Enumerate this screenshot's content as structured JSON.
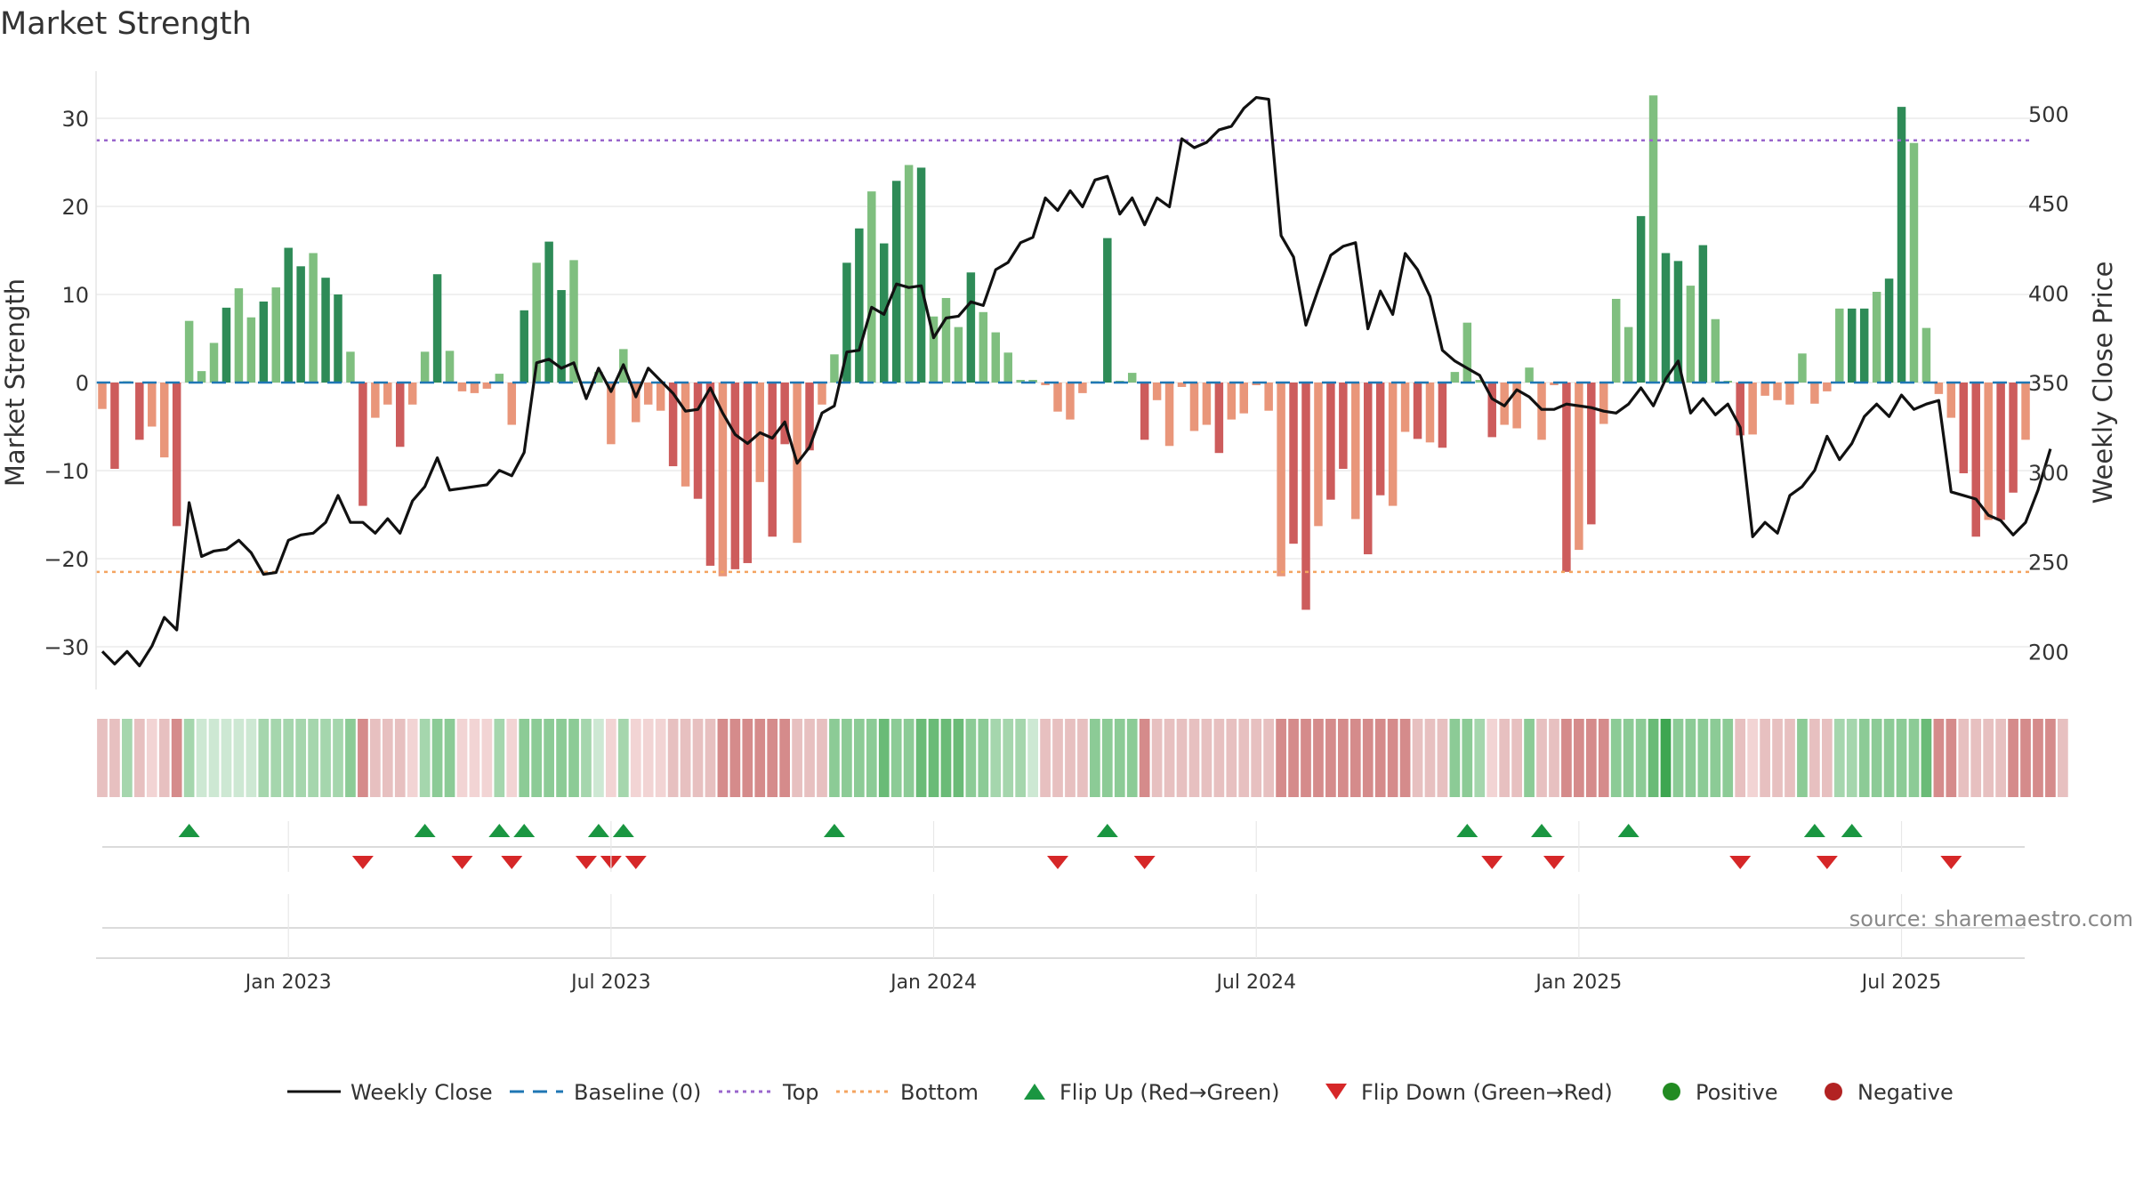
{
  "title": "Market Strength",
  "source_text": "source: sharemaestro.com",
  "colors": {
    "pos_strong": "#2e8b57",
    "pos_light": "#7fbf7f",
    "neg_strong": "#cd5c5c",
    "neg_light": "#e9967a",
    "close_line": "#111111",
    "baseline": "#1f77b4",
    "top": "#9966cc",
    "bottom": "#f4a460",
    "flip_up": "#1a9641",
    "flip_down": "#d62728",
    "positive_dot": "#228b22",
    "negative_dot": "#b22222"
  },
  "chart_data": {
    "type": "bar",
    "title": "Market Strength",
    "ylabel": "Market Strength",
    "y2label": "Weekly Close Price",
    "ylim": [
      -35,
      35
    ],
    "y2lim": [
      182,
      518
    ],
    "yticks": [
      -30,
      -20,
      -10,
      0,
      10,
      20,
      30
    ],
    "yticklabels": [
      "−30",
      "−20",
      "−10",
      "0",
      "10",
      "20",
      "30"
    ],
    "y2ticks": [
      200,
      250,
      300,
      350,
      400,
      450,
      500
    ],
    "y2ticklabels": [
      "200",
      "250",
      "300",
      "350",
      "400",
      "450",
      "500"
    ],
    "xticklabels": [
      "Jan 2023",
      "Jul 2023",
      "Jan 2024",
      "Jul 2024",
      "Jan 2025",
      "Jul 2025"
    ],
    "xtick_index": [
      15,
      41,
      67,
      93,
      119,
      145
    ],
    "top_level": 27.5,
    "bottom_level": -21.5,
    "baseline_level": 0,
    "strength": [
      -3,
      -9.8,
      0,
      -6.5,
      -5,
      -8.5,
      -16.3,
      7,
      1.3,
      4.5,
      8.5,
      10.7,
      7.4,
      9.2,
      10.8,
      15.3,
      13.2,
      14.7,
      11.9,
      10,
      3.5,
      -14,
      -4,
      -2.5,
      -7.3,
      -2.5,
      3.5,
      12.3,
      3.6,
      -1,
      -1.2,
      -0.7,
      1,
      -4.8,
      8.2,
      13.6,
      16,
      10.5,
      13.9,
      0,
      1.2,
      -7,
      3.8,
      -4.5,
      -2.5,
      -3.2,
      -9.5,
      -11.8,
      -13.2,
      -20.8,
      -22,
      -21.2,
      -20.5,
      -11.3,
      -17.5,
      -7,
      -18.2,
      -7.7,
      -2.5,
      3.2,
      13.6,
      17.5,
      21.7,
      15.8,
      22.9,
      24.7,
      24.4,
      7.5,
      9.6,
      6.3,
      12.5,
      8,
      5.7,
      3.4,
      0.3,
      0.3,
      -0.3,
      -3.3,
      -4.2,
      -1.2,
      0.1,
      16.4,
      0.2,
      1.1,
      -6.5,
      -2,
      -7.2,
      -0.5,
      -5.5,
      -4.8,
      -8,
      -4.2,
      -3.5,
      -0.3,
      -3.2,
      -22,
      -18.3,
      -25.8,
      -16.3,
      -13.3,
      -9.8,
      -15.5,
      -19.5,
      -12.8,
      -14,
      -5.6,
      -6.4,
      -6.8,
      -7.4,
      1.2,
      6.8,
      0.3,
      -6.2,
      -4.8,
      -5.2,
      1.7,
      -6.5,
      -0.3,
      -21.5,
      -19,
      -16.1,
      -4.7,
      9.5,
      6.3,
      18.9,
      32.6,
      14.7,
      13.8,
      11,
      15.6,
      7.2,
      0.2,
      -6,
      -5.9,
      -1.5,
      -2,
      -2.5,
      3.3,
      -2.4,
      -1,
      8.4,
      8.4,
      8.4,
      10.3,
      11.8,
      31.3,
      27.2,
      6.2,
      -1.3,
      -4,
      -10.3,
      -17.5,
      -15.6,
      -15.6,
      -12.5,
      -6.5
    ],
    "weekly_close": [
      200,
      193,
      200,
      192,
      203,
      219,
      212,
      283,
      253,
      256,
      257,
      262,
      255,
      243,
      244,
      262,
      265,
      266,
      272,
      287,
      272,
      272,
      266,
      274,
      266,
      284,
      292,
      308,
      290,
      291,
      292,
      293,
      301,
      298,
      311,
      361,
      363,
      358,
      361,
      341,
      358,
      345,
      360,
      342,
      358,
      351,
      344,
      334,
      335,
      347,
      333,
      321,
      316,
      322,
      319,
      328,
      305,
      314,
      333,
      337,
      367,
      368,
      392,
      388,
      405,
      403,
      404,
      375,
      386,
      387,
      395,
      393,
      413,
      417,
      428,
      431,
      453,
      446,
      457,
      448,
      463,
      465,
      444,
      453,
      438,
      453,
      448,
      486,
      481,
      484,
      491,
      493,
      503,
      509,
      508,
      432,
      420,
      382,
      402,
      421,
      426,
      428,
      380,
      401,
      388,
      422,
      413,
      398,
      368,
      362,
      358,
      354,
      341,
      337,
      346,
      342,
      335,
      335,
      338,
      337,
      336,
      334,
      333,
      338,
      347,
      337,
      352,
      362,
      333,
      341,
      332,
      338,
      325,
      264,
      272,
      266,
      287,
      292,
      301,
      320,
      307,
      316,
      331,
      338,
      331,
      343,
      335,
      338,
      340,
      289,
      287,
      285,
      276,
      273,
      265,
      272,
      290,
      313
    ]
  },
  "bottom_panel": {
    "band_levels": [
      3,
      3,
      2,
      3,
      2,
      3,
      4,
      2,
      1,
      1,
      1,
      1,
      1,
      2,
      2,
      2,
      2,
      2,
      2,
      2,
      3,
      4,
      3,
      3,
      3,
      2,
      2,
      3,
      3,
      2,
      2,
      2,
      2,
      2,
      3,
      3,
      3,
      3,
      3,
      2,
      1,
      2,
      2,
      2,
      2,
      2,
      3,
      3,
      3,
      3,
      4,
      4,
      4,
      4,
      4,
      4,
      3,
      3,
      3,
      3,
      3,
      3,
      3,
      4,
      3,
      3,
      4,
      4,
      4,
      4,
      3,
      3,
      2,
      2,
      2,
      1,
      1,
      1,
      1,
      3,
      3,
      3,
      3,
      3,
      4,
      3,
      3,
      3,
      3,
      3,
      3,
      3,
      3,
      3,
      3,
      4,
      4,
      4,
      4,
      4,
      4,
      4,
      4,
      4,
      4,
      4,
      3,
      3,
      3,
      3,
      3,
      2,
      2,
      3,
      3,
      3,
      3,
      3,
      4,
      4,
      4,
      4,
      3,
      3,
      3,
      4,
      5,
      3,
      3,
      3,
      3,
      3,
      3,
      2,
      3,
      3,
      3,
      3,
      3,
      3,
      2,
      2,
      3,
      3,
      3,
      3,
      3,
      4,
      4,
      4,
      3,
      3,
      3,
      3,
      4,
      4,
      4,
      4,
      3
    ],
    "band_colors": [
      "#f2d4d4",
      "#cde8d3",
      "#a5d6ad",
      "#8ccb96",
      "#6abb77",
      "#3ea651",
      "#e7c0c0",
      "#dea2a2",
      "#d58b8b",
      "#ebc7c7"
    ],
    "flip_up_index": [
      7,
      26,
      32,
      34,
      40,
      42,
      59,
      81,
      110,
      116,
      123,
      138,
      141
    ],
    "flip_down_index": [
      21,
      29,
      33,
      39,
      41,
      43,
      77,
      84,
      112,
      117,
      132,
      139,
      149
    ]
  },
  "legend": [
    {
      "label": "Weekly Close",
      "kind": "line"
    },
    {
      "label": "Baseline (0)",
      "kind": "dash"
    },
    {
      "label": "Top",
      "kind": "dot-purple"
    },
    {
      "label": "Bottom",
      "kind": "dot-orange"
    },
    {
      "label": "Flip Up (Red→Green)",
      "kind": "tri-up"
    },
    {
      "label": "Flip Down (Green→Red)",
      "kind": "tri-down"
    },
    {
      "label": "Positive",
      "kind": "dot-green"
    },
    {
      "label": "Negative",
      "kind": "dot-red"
    }
  ]
}
